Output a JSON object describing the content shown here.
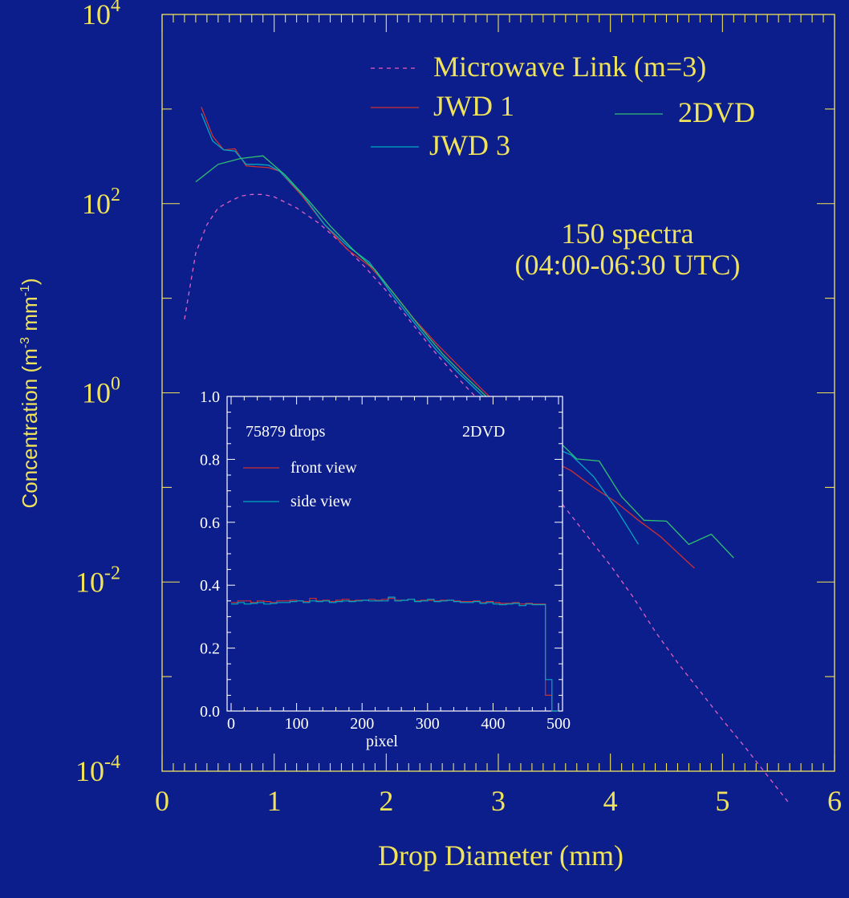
{
  "chart_data": [
    {
      "type": "line",
      "xlabel": "Drop Diameter (mm)",
      "ylabel": "Concentration (m",
      "ylabel_sup1": "-3",
      "ylabel_mid": " mm",
      "ylabel_sup2": "-1",
      "ylabel_end": ")",
      "xlim": [
        0,
        6
      ],
      "ylim_log10": [
        -4,
        4
      ],
      "y_scale": "log",
      "x_ticks": [
        "0",
        "1",
        "2",
        "3",
        "4",
        "5",
        "6"
      ],
      "y_ticks": [
        {
          "base": "10",
          "exp": "4"
        },
        {
          "base": "10",
          "exp": "2"
        },
        {
          "base": "10",
          "exp": "0"
        },
        {
          "base": "10",
          "exp": "-2"
        },
        {
          "base": "10",
          "exp": "-4"
        }
      ],
      "annotation_line1": "150 spectra",
      "annotation_line2": "(04:00-06:30 UTC)",
      "legend_placement": "top-right",
      "series": [
        {
          "name": "Microwave Link (m=3)",
          "color": "#e060c0",
          "dash": true,
          "x": [
            0.2,
            0.3,
            0.4,
            0.5,
            0.6,
            0.7,
            0.8,
            0.9,
            1.0,
            1.2,
            1.4,
            1.6,
            1.8,
            2.0,
            2.2,
            2.4,
            2.6,
            2.8,
            3.0,
            3.2,
            3.4,
            3.6,
            3.8,
            4.0,
            4.2,
            4.4,
            4.6,
            4.8,
            5.0,
            5.2,
            5.4,
            5.6
          ],
          "y": [
            6,
            30,
            60,
            90,
            105,
            120,
            125,
            125,
            118,
            90,
            62,
            38,
            22,
            12,
            6,
            3,
            1.6,
            0.9,
            0.5,
            0.25,
            0.12,
            0.06,
            0.03,
            0.015,
            0.007,
            0.003,
            0.0014,
            0.0007,
            0.00035,
            0.00018,
            9e-05,
            4.5e-05
          ]
        },
        {
          "name": "JWD 1",
          "color": "#d03030",
          "dash": false,
          "x": [
            0.35,
            0.45,
            0.55,
            0.65,
            0.75,
            0.85,
            0.95,
            1.05,
            1.25,
            1.45,
            1.65,
            1.85,
            2.05,
            2.25,
            2.45,
            2.65,
            2.85,
            3.05,
            3.25,
            3.45,
            3.65,
            3.85,
            4.05,
            4.25,
            4.45,
            4.65,
            4.75
          ],
          "y": [
            1050,
            520,
            370,
            380,
            250,
            245,
            240,
            220,
            120,
            60,
            33,
            22,
            12,
            6,
            3.3,
            1.9,
            1.1,
            0.65,
            0.35,
            0.2,
            0.15,
            0.1,
            0.07,
            0.045,
            0.03,
            0.018,
            0.014
          ]
        },
        {
          "name": "JWD 3",
          "color": "#00a8c0",
          "dash": false,
          "x": [
            0.35,
            0.45,
            0.55,
            0.65,
            0.75,
            0.85,
            0.95,
            1.05,
            1.25,
            1.45,
            1.65,
            1.85,
            2.05,
            2.25,
            2.45,
            2.65,
            2.85,
            3.05,
            3.25,
            3.45,
            3.65,
            3.85,
            4.05,
            4.25
          ],
          "y": [
            900,
            460,
            370,
            360,
            260,
            260,
            255,
            220,
            125,
            60,
            36,
            24,
            11,
            5.5,
            2.8,
            1.6,
            0.95,
            0.6,
            0.38,
            0.28,
            0.22,
            0.13,
            0.06,
            0.025
          ]
        },
        {
          "name": "2DVD",
          "color": "#30c070",
          "dash": false,
          "x": [
            0.3,
            0.5,
            0.7,
            0.9,
            1.1,
            1.3,
            1.5,
            1.7,
            1.9,
            2.1,
            2.3,
            2.5,
            2.7,
            2.9,
            3.1,
            3.3,
            3.5,
            3.7,
            3.9,
            4.1,
            4.3,
            4.5,
            4.7,
            4.9,
            5.1
          ],
          "y": [
            170,
            260,
            300,
            320,
            200,
            110,
            58,
            33,
            20,
            10,
            5,
            2.6,
            1.5,
            0.9,
            0.58,
            0.38,
            0.34,
            0.2,
            0.19,
            0.08,
            0.045,
            0.044,
            0.025,
            0.032,
            0.018
          ]
        }
      ]
    },
    {
      "type": "line",
      "xlabel": "pixel",
      "ylabel": "",
      "xlim": [
        0,
        500
      ],
      "ylim": [
        0,
        1
      ],
      "x_ticks": [
        "0",
        "100",
        "200",
        "300",
        "400",
        "500"
      ],
      "y_ticks": [
        "0.0",
        "0.2",
        "0.4",
        "0.6",
        "0.8",
        "1.0"
      ],
      "annotation_left": "75879 drops",
      "annotation_right": "2DVD",
      "series": [
        {
          "name": "front view",
          "color": "#d03030",
          "step": true,
          "x": [
            0,
            10,
            20,
            30,
            40,
            50,
            60,
            70,
            80,
            90,
            100,
            110,
            120,
            130,
            140,
            150,
            160,
            170,
            180,
            190,
            200,
            210,
            220,
            230,
            240,
            250,
            260,
            270,
            280,
            290,
            300,
            310,
            320,
            330,
            340,
            350,
            360,
            370,
            380,
            390,
            400,
            410,
            420,
            430,
            440,
            450,
            460,
            470,
            480,
            490
          ],
          "y": [
            0.345,
            0.35,
            0.35,
            0.345,
            0.35,
            0.348,
            0.345,
            0.35,
            0.35,
            0.352,
            0.35,
            0.348,
            0.358,
            0.35,
            0.352,
            0.348,
            0.352,
            0.355,
            0.35,
            0.352,
            0.352,
            0.355,
            0.352,
            0.355,
            0.358,
            0.352,
            0.352,
            0.355,
            0.35,
            0.352,
            0.352,
            0.35,
            0.352,
            0.352,
            0.35,
            0.348,
            0.348,
            0.35,
            0.345,
            0.348,
            0.345,
            0.342,
            0.342,
            0.345,
            0.34,
            0.342,
            0.34,
            0.34,
            0.05,
            0.0
          ]
        },
        {
          "name": "side view",
          "color": "#00a8c0",
          "step": true,
          "x": [
            0,
            10,
            20,
            30,
            40,
            50,
            60,
            70,
            80,
            90,
            100,
            110,
            120,
            130,
            140,
            150,
            160,
            170,
            180,
            190,
            200,
            210,
            220,
            230,
            240,
            250,
            260,
            270,
            280,
            290,
            300,
            310,
            320,
            330,
            340,
            350,
            360,
            370,
            380,
            390,
            400,
            410,
            420,
            430,
            440,
            450,
            460,
            470,
            480,
            490
          ],
          "y": [
            0.34,
            0.345,
            0.34,
            0.342,
            0.345,
            0.34,
            0.342,
            0.345,
            0.345,
            0.348,
            0.35,
            0.345,
            0.35,
            0.348,
            0.35,
            0.345,
            0.348,
            0.35,
            0.348,
            0.35,
            0.352,
            0.35,
            0.35,
            0.35,
            0.362,
            0.35,
            0.352,
            0.355,
            0.348,
            0.35,
            0.355,
            0.348,
            0.35,
            0.352,
            0.348,
            0.345,
            0.345,
            0.348,
            0.342,
            0.345,
            0.34,
            0.338,
            0.34,
            0.342,
            0.335,
            0.34,
            0.338,
            0.338,
            0.1,
            0.0
          ]
        }
      ]
    }
  ]
}
